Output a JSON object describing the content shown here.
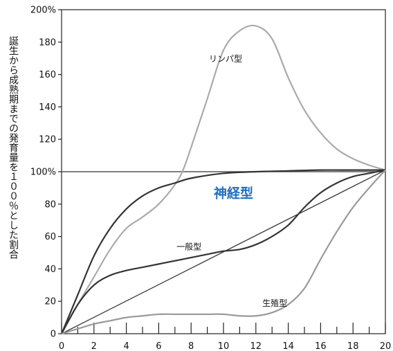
{
  "chart_data": {
    "type": "line",
    "ylabel": "誕生から成熟期までの発育量を１００％とした割合",
    "xlim": [
      0,
      20
    ],
    "ylim": [
      0,
      200
    ],
    "xticks": [
      "0",
      "2",
      "4",
      "6",
      "8",
      "10",
      "12",
      "14",
      "16",
      "18",
      "20"
    ],
    "yticks": [
      "0",
      "20",
      "40",
      "60",
      "80",
      "100%",
      "120",
      "140",
      "160",
      "180",
      "200%"
    ],
    "reference_line": {
      "y": 100,
      "color": "#555555"
    },
    "series": [
      {
        "name": "リンパ型",
        "color": "#aaaaaa",
        "points": [
          [
            0,
            0
          ],
          [
            1,
            18
          ],
          [
            2,
            35
          ],
          [
            3,
            52
          ],
          [
            4,
            65
          ],
          [
            5,
            72
          ],
          [
            6,
            80
          ],
          [
            7,
            92
          ],
          [
            7.5,
            101
          ],
          [
            8,
            115
          ],
          [
            9,
            145
          ],
          [
            10,
            175
          ],
          [
            11,
            187
          ],
          [
            12,
            190
          ],
          [
            13,
            182
          ],
          [
            14,
            158
          ],
          [
            15,
            138
          ],
          [
            16,
            124
          ],
          [
            17,
            114
          ],
          [
            18,
            108
          ],
          [
            19,
            104
          ],
          [
            20,
            101
          ]
        ]
      },
      {
        "name": "神経型",
        "color": "#333333",
        "points": [
          [
            0,
            0
          ],
          [
            1,
            24
          ],
          [
            2,
            48
          ],
          [
            3,
            65
          ],
          [
            4,
            77
          ],
          [
            5,
            85
          ],
          [
            6,
            90
          ],
          [
            7,
            93
          ],
          [
            8,
            96
          ],
          [
            10,
            99
          ],
          [
            12,
            100
          ],
          [
            14,
            100.5
          ],
          [
            16,
            101
          ],
          [
            18,
            101
          ],
          [
            20,
            101
          ]
        ]
      },
      {
        "name": "一般型",
        "color": "#333333",
        "points": [
          [
            0,
            0
          ],
          [
            1,
            18
          ],
          [
            2,
            30
          ],
          [
            3,
            36
          ],
          [
            4,
            39
          ],
          [
            5,
            41
          ],
          [
            6,
            43
          ],
          [
            7,
            45
          ],
          [
            8,
            47
          ],
          [
            9,
            49
          ],
          [
            10,
            51
          ],
          [
            11,
            52
          ],
          [
            12,
            55
          ],
          [
            13,
            60
          ],
          [
            14,
            67
          ],
          [
            15,
            78
          ],
          [
            16,
            87
          ],
          [
            17,
            93
          ],
          [
            18,
            97
          ],
          [
            19,
            99
          ],
          [
            20,
            101
          ]
        ]
      },
      {
        "name": "",
        "color": "#333333",
        "points": [
          [
            0,
            0
          ],
          [
            20,
            101
          ]
        ]
      },
      {
        "name": "生殖型",
        "color": "#999999",
        "points": [
          [
            0,
            0
          ],
          [
            1,
            3
          ],
          [
            2,
            6
          ],
          [
            3,
            8
          ],
          [
            4,
            10
          ],
          [
            5,
            11
          ],
          [
            6,
            12
          ],
          [
            7,
            12
          ],
          [
            8,
            12
          ],
          [
            9,
            12
          ],
          [
            10,
            12
          ],
          [
            11,
            11
          ],
          [
            12,
            11
          ],
          [
            13,
            13
          ],
          [
            14,
            18
          ],
          [
            15,
            28
          ],
          [
            16,
            46
          ],
          [
            17,
            63
          ],
          [
            18,
            78
          ],
          [
            19,
            90
          ],
          [
            20,
            101
          ]
        ]
      }
    ],
    "labels": [
      {
        "text": "リンパ型",
        "x": 9.1,
        "y": 168
      },
      {
        "text": "神経型",
        "x": 9.4,
        "y": 84
      },
      {
        "text": "一般型",
        "x": 7.1,
        "y": 52
      },
      {
        "text": "生殖型",
        "x": 12.4,
        "y": 17
      }
    ]
  }
}
